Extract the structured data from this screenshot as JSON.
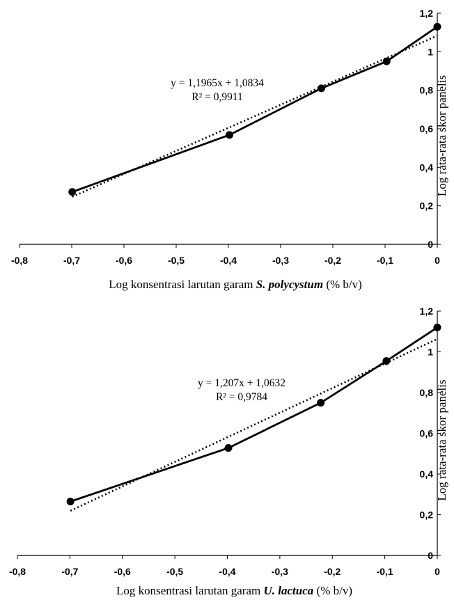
{
  "chart_data": [
    {
      "type": "line",
      "xlabel_prefix": "Log konsentrasi larutan garam ",
      "xlabel_species": "S. polycystum",
      "xlabel_suffix": " (% b/v)",
      "ylabel": "Log rata-rata skor panelis",
      "x_ticks": [
        "-0,8",
        "-0,7",
        "-0,6",
        "-0,5",
        "-0,4",
        "-0,3",
        "-0,2",
        "-0,1",
        "0"
      ],
      "y_ticks": [
        "0",
        "0,2",
        "0,4",
        "0,6",
        "0,8",
        "1",
        "1,2"
      ],
      "xlim": [
        -0.8,
        0
      ],
      "ylim": [
        0,
        1.2
      ],
      "series": [
        {
          "x": [
            -0.699,
            -0.398,
            -0.222,
            -0.097,
            0
          ],
          "y": [
            0.272,
            0.568,
            0.81,
            0.95,
            1.13
          ]
        }
      ],
      "trendline": {
        "slope": 1.1965,
        "intercept": 1.0834,
        "style": "dotted"
      },
      "equation": "y = 1,1965x + 1,0834",
      "r2": "R² = 0,9911"
    },
    {
      "type": "line",
      "xlabel_prefix": "Log konsentrasi larutan garam ",
      "xlabel_species": "U. lactuca",
      "xlabel_suffix": " (% b/v)",
      "ylabel": "Log rata-rata skor panelis",
      "x_ticks": [
        "-0,8",
        "-0,7",
        "-0,6",
        "-0,5",
        "-0,4",
        "-0,3",
        "-0,2",
        "-0,1",
        "0"
      ],
      "y_ticks": [
        "0",
        "0,2",
        "0,4",
        "0,6",
        "0,8",
        "1",
        "1,2"
      ],
      "xlim": [
        -0.8,
        0
      ],
      "ylim": [
        0,
        1.2
      ],
      "series": [
        {
          "x": [
            -0.699,
            -0.398,
            -0.222,
            -0.097,
            0
          ],
          "y": [
            0.265,
            0.528,
            0.75,
            0.955,
            1.12
          ]
        }
      ],
      "trendline": {
        "slope": 1.207,
        "intercept": 1.0632,
        "style": "dotted"
      },
      "equation": "y = 1,207x + 1,0632",
      "r2": "R² = 0,9784"
    }
  ]
}
